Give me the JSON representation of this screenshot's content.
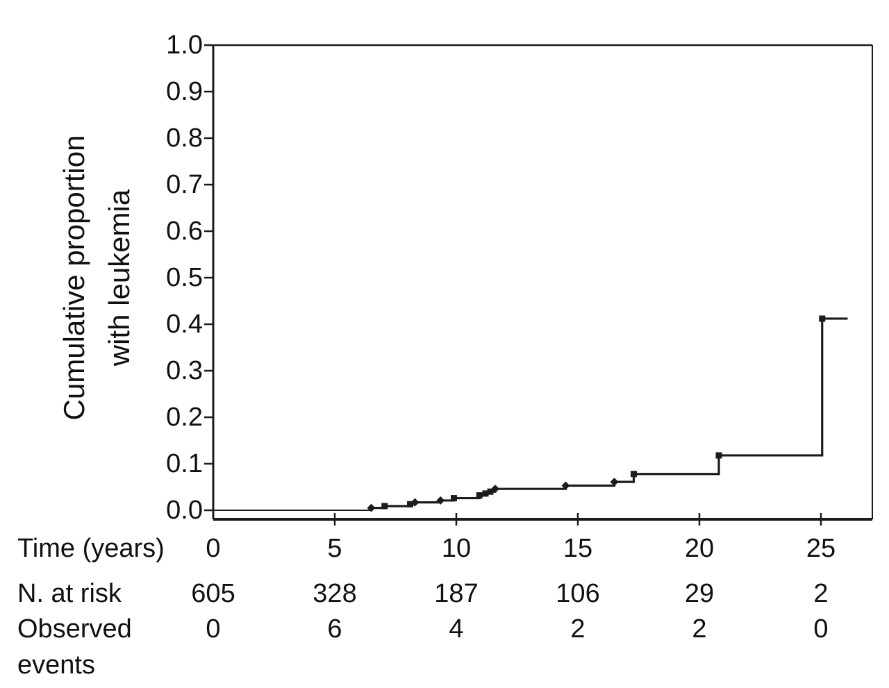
{
  "figure": {
    "background": "#ffffff",
    "line_color": "#1c1c1c",
    "text_color": "#111111",
    "y_axis_label_line1": "Cumulative proportion",
    "y_axis_label_line2": "with leukemia",
    "time_axis_label": "Time (years)"
  },
  "risk_table": {
    "time_label": "Time (years)",
    "n_at_risk_label": "N. at risk",
    "observed_label_line1": "Observed",
    "observed_label_line2": "events",
    "times": [
      "0",
      "5",
      "10",
      "15",
      "20",
      "25"
    ],
    "n_at_risk": [
      "605",
      "328",
      "187",
      "106",
      "29",
      "2"
    ],
    "observed_events": [
      "0",
      "6",
      "4",
      "2",
      "2",
      "0"
    ]
  },
  "chart_data": {
    "type": "line",
    "subtype": "step",
    "title": "",
    "xlabel": "Time (years)",
    "ylabel": "Cumulative proportion with leukemia",
    "xlim": [
      0,
      27.1
    ],
    "ylim": [
      -0.02,
      1.0
    ],
    "grid": false,
    "legend": "none",
    "x_ticks": [
      0,
      5,
      10,
      15,
      20,
      25
    ],
    "y_ticks": [
      0.0,
      0.1,
      0.2,
      0.3,
      0.4,
      0.5,
      0.6,
      0.7,
      0.8,
      0.9,
      1.0
    ],
    "y_tick_labels": [
      "0.0",
      "0.1",
      "0.2",
      "0.3",
      "0.4",
      "0.5",
      "0.6",
      "0.7",
      "0.8",
      "0.9",
      "1.0"
    ],
    "series": [
      {
        "name": "Cumulative proportion with leukemia",
        "steps": [
          [
            0,
            0.0
          ],
          [
            6.5,
            0.005
          ],
          [
            7.05,
            0.009
          ],
          [
            8.1,
            0.013
          ],
          [
            8.3,
            0.017
          ],
          [
            9.35,
            0.021
          ],
          [
            9.9,
            0.026
          ],
          [
            10.95,
            0.032
          ],
          [
            11.2,
            0.036
          ],
          [
            11.4,
            0.04
          ],
          [
            11.6,
            0.046
          ],
          [
            14.5,
            0.053
          ],
          [
            16.5,
            0.061
          ],
          [
            17.3,
            0.078
          ],
          [
            20.8,
            0.118
          ],
          [
            25.05,
            0.412
          ]
        ],
        "end_x": 26.1
      }
    ],
    "markers": [
      {
        "x": 6.5,
        "y": 0.005,
        "shape": "diamond"
      },
      {
        "x": 7.05,
        "y": 0.009,
        "shape": "square"
      },
      {
        "x": 8.1,
        "y": 0.013,
        "shape": "square"
      },
      {
        "x": 8.3,
        "y": 0.017,
        "shape": "diamond"
      },
      {
        "x": 9.35,
        "y": 0.021,
        "shape": "diamond"
      },
      {
        "x": 9.9,
        "y": 0.026,
        "shape": "square"
      },
      {
        "x": 10.95,
        "y": 0.032,
        "shape": "square"
      },
      {
        "x": 11.2,
        "y": 0.036,
        "shape": "square"
      },
      {
        "x": 11.4,
        "y": 0.04,
        "shape": "square"
      },
      {
        "x": 11.6,
        "y": 0.046,
        "shape": "diamond"
      },
      {
        "x": 14.5,
        "y": 0.053,
        "shape": "diamond"
      },
      {
        "x": 16.5,
        "y": 0.061,
        "shape": "diamond"
      },
      {
        "x": 17.3,
        "y": 0.078,
        "shape": "square"
      },
      {
        "x": 20.8,
        "y": 0.118,
        "shape": "square"
      },
      {
        "x": 25.05,
        "y": 0.412,
        "shape": "square"
      }
    ]
  }
}
